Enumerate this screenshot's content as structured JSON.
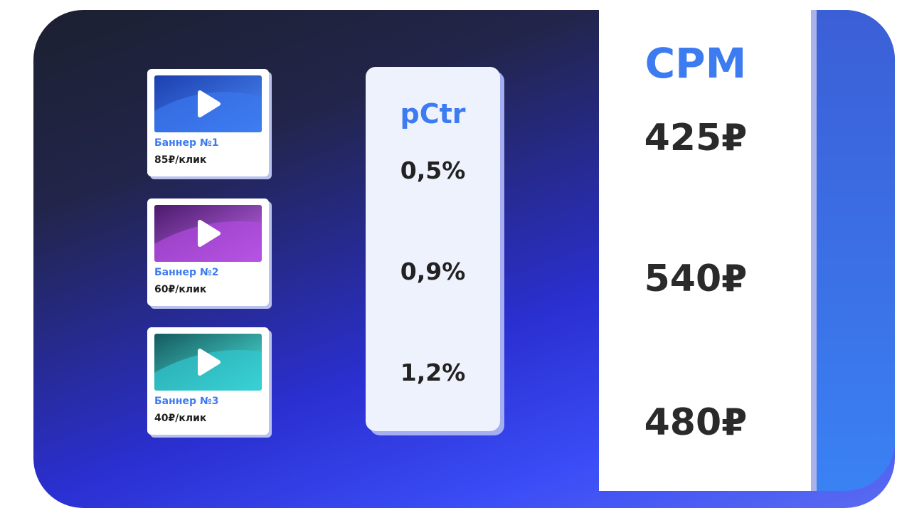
{
  "banners": [
    {
      "title": "Баннер №1",
      "price": "85₽/клик"
    },
    {
      "title": "Баннер №2",
      "price": "60₽/клик"
    },
    {
      "title": "Баннер №3",
      "price": "40₽/клик"
    }
  ],
  "pctr": {
    "title": "pCtr",
    "values": [
      "0,5%",
      "0,9%",
      "1,2%"
    ]
  },
  "cpm": {
    "title": "CPM",
    "values": [
      "425₽",
      "540₽",
      "480₽"
    ]
  }
}
